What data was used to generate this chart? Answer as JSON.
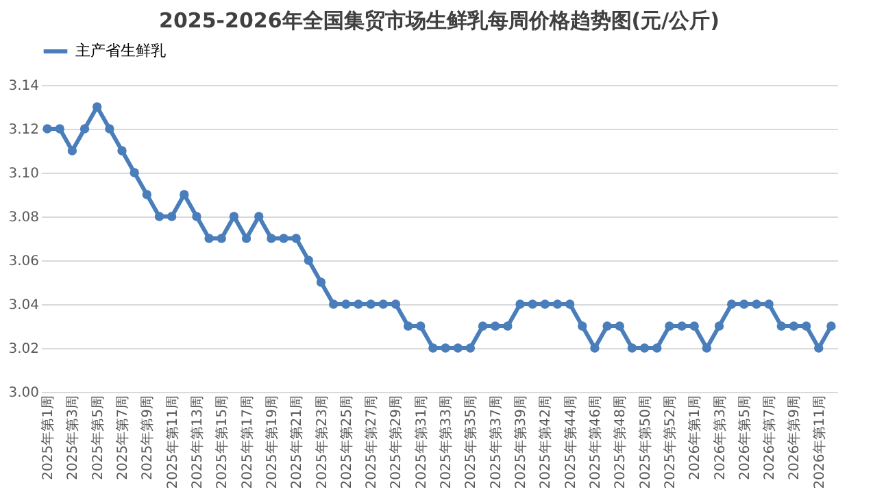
{
  "chart_data": {
    "type": "line",
    "title": "2025-2026年全国集贸市场生鲜乳每周价格趋势图(元/公斤)",
    "categories": [
      "2025年第1周",
      null,
      "2025年第3周",
      null,
      "2025年第5周",
      null,
      "2025年第7周",
      null,
      "2025年第9周",
      null,
      "2025年第11周",
      null,
      "2025年第13周",
      null,
      "2025年第15周",
      null,
      "2025年第17周",
      null,
      "2025年第19周",
      null,
      "2025年第21周",
      null,
      "2025年第23周",
      null,
      "2025年第25周",
      null,
      "2025年第27周",
      null,
      "2025年第29周",
      null,
      "2025年第31周",
      null,
      "2025年第33周",
      null,
      "2025年第35周",
      null,
      "2025年第37周",
      null,
      "2025年第39周",
      null,
      "2025年第42周",
      null,
      "2025年第44周",
      null,
      "2025年第46周",
      null,
      "2025年第48周",
      null,
      "2025年第50周",
      null,
      "2025年第52周",
      null,
      "2026年第1周",
      null,
      "2026年第3周",
      null,
      "2026年第5周",
      null,
      "2026年第7周",
      null,
      "2026年第9周",
      null,
      "2026年第11周",
      null
    ],
    "series": [
      {
        "name": "主产省生鲜乳",
        "color": "#4a7ebb",
        "values": [
          3.12,
          3.12,
          3.11,
          3.12,
          3.13,
          3.12,
          3.11,
          3.1,
          3.09,
          3.08,
          3.08,
          3.09,
          3.08,
          3.07,
          3.07,
          3.08,
          3.07,
          3.08,
          3.07,
          3.07,
          3.07,
          3.06,
          3.05,
          3.04,
          3.04,
          3.04,
          3.04,
          3.04,
          3.04,
          3.03,
          3.03,
          3.02,
          3.02,
          3.02,
          3.02,
          3.03,
          3.03,
          3.03,
          3.04,
          3.04,
          3.04,
          3.04,
          3.04,
          3.03,
          3.02,
          3.03,
          3.03,
          3.02,
          3.02,
          3.02,
          3.03,
          3.03,
          3.03,
          3.02,
          3.03,
          3.04,
          3.04,
          3.04,
          3.04,
          3.03,
          3.03,
          3.03,
          3.02,
          3.03
        ]
      }
    ],
    "ylim": [
      3.0,
      3.14
    ],
    "yticks": [
      {
        "value": 3.0,
        "label": "3.00"
      },
      {
        "value": 3.02,
        "label": "3.02"
      },
      {
        "value": 3.04,
        "label": "3.04"
      },
      {
        "value": 3.06,
        "label": "3.06"
      },
      {
        "value": 3.08,
        "label": "3.08"
      },
      {
        "value": 3.1,
        "label": "3.10"
      },
      {
        "value": 3.12,
        "label": "3.12"
      },
      {
        "value": 3.14,
        "label": "3.14"
      }
    ],
    "grid": "y",
    "legend": "top",
    "marker": "circle",
    "line_style": "solid"
  }
}
